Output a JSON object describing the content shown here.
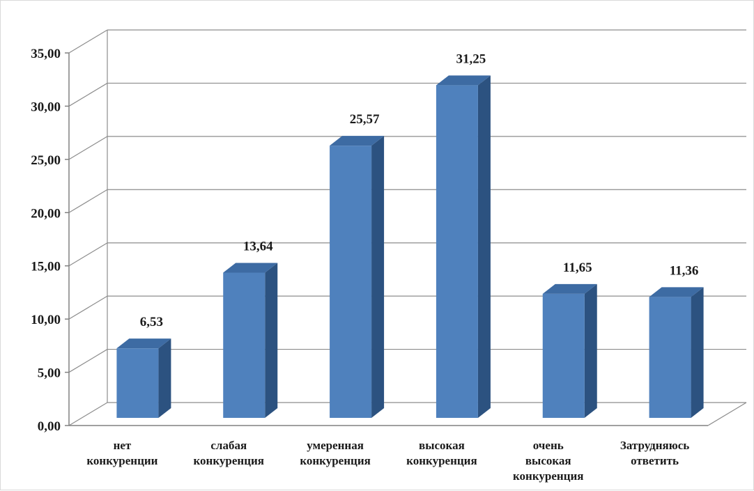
{
  "chart_data": {
    "type": "bar",
    "categories": [
      [
        "нет",
        "конкуренции"
      ],
      [
        "слабая",
        "конкуренция"
      ],
      [
        "умеренная",
        "конкуренция"
      ],
      [
        "высокая",
        "конкуренция"
      ],
      [
        "очень",
        "высокая",
        "конкуренция"
      ],
      [
        "Затрудняюсь",
        "ответить"
      ]
    ],
    "values": [
      6.53,
      13.64,
      25.57,
      31.25,
      11.65,
      11.36
    ],
    "data_labels": [
      "6,53",
      "13,64",
      "25,57",
      "31,25",
      "11,65",
      "11,36"
    ],
    "y_tick_labels": [
      "0,00",
      "5,00",
      "10,00",
      "15,00",
      "20,00",
      "25,00",
      "30,00",
      "35,00"
    ],
    "ylim": [
      0,
      35
    ],
    "y_step": 5,
    "grid": true,
    "legend": "none",
    "style": "3d-column",
    "colors": {
      "bar_front": "#4f81bd",
      "bar_top": "#3d6ba3",
      "bar_side": "#2c5280",
      "gridline": "#8c8c8c",
      "axis": "#808080",
      "text": "#1a1a1a"
    }
  }
}
